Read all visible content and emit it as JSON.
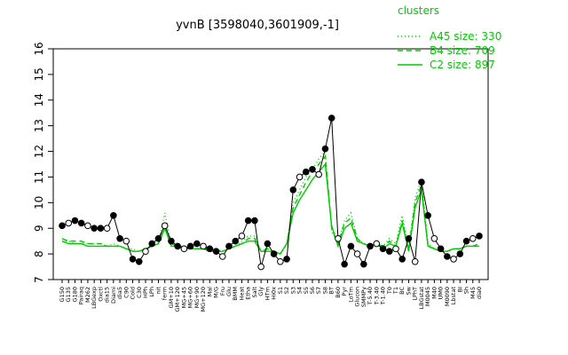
{
  "chart_data": {
    "type": "line",
    "title": "yvnB [3598040,3601909,-1]",
    "xlabel": "",
    "ylabel": "",
    "ylim": [
      7,
      16
    ],
    "yticks": [
      7,
      8,
      9,
      10,
      11,
      12,
      13,
      14,
      15,
      16
    ],
    "grid": false,
    "legend": {
      "title": "clusters",
      "placement": "top-right",
      "entries": [
        {
          "label": "A45 size: 330",
          "style": "dotted"
        },
        {
          "label": "B4 size: 709",
          "style": "dashed"
        },
        {
          "label": "C2 size: 897",
          "style": "solid"
        }
      ]
    },
    "colors": {
      "line": "#00cc00",
      "profile": "#000000",
      "points": "#000000"
    },
    "x_tick_labels": [
      "G150",
      "G135",
      "G180",
      "Pairaq",
      "M262",
      "LBGexp",
      "Oxctl",
      "dia15",
      "Diami",
      "dia5",
      "C90",
      "Cold",
      "C30",
      "HPh",
      "LPh",
      "nit",
      "ferm",
      "GM+10",
      "GM+120",
      "MG+45",
      "MG+60",
      "MG+90",
      "MG+120",
      "Mal",
      "M/G",
      "Fru",
      "Glu",
      "BMM",
      "Heat",
      "Etha",
      "Salt",
      "Gly",
      "HTm",
      "Hi0x",
      "S1",
      "S2",
      "S3",
      "S4",
      "S5",
      "S6",
      "S7",
      "S8",
      "BT",
      "B60",
      "Pyr",
      "LoTm",
      "Glucon",
      "SMMPy",
      "T-5.40",
      "T-3.40",
      "T-1.40",
      "T0",
      "T1",
      "BC",
      "Sw",
      "LPhT",
      "LBGstat",
      "M0045",
      "M40",
      "UM0",
      "M0090",
      "Lbstat",
      "BI",
      "Sh",
      "M45",
      "dia0"
    ],
    "series": [
      {
        "name": "A45 size: 330",
        "values": [
          8.5,
          8.5,
          8.4,
          8.4,
          8.4,
          8.4,
          8.4,
          8.3,
          8.4,
          8.3,
          8.2,
          8.2,
          8.1,
          8.2,
          8.3,
          8.4,
          9.6,
          8.4,
          8.3,
          8.3,
          8.2,
          8.2,
          8.2,
          8.2,
          8.2,
          8.1,
          8.2,
          8.3,
          8.5,
          8.7,
          8.7,
          8.1,
          8.2,
          8.1,
          8.0,
          8.4,
          10.0,
          10.5,
          11.0,
          11.3,
          11.7,
          12.0,
          8.9,
          8.4,
          9.3,
          9.6,
          8.6,
          8.4,
          8.3,
          8.5,
          8.3,
          8.6,
          8.4,
          9.5,
          8.2,
          10.2,
          10.9,
          8.4,
          8.2,
          8.1,
          8.1,
          8.2,
          8.2,
          8.3,
          8.3,
          8.4
        ]
      },
      {
        "name": "B4 size: 709",
        "values": [
          8.6,
          8.5,
          8.5,
          8.5,
          8.4,
          8.4,
          8.4,
          8.3,
          8.3,
          8.3,
          8.2,
          8.1,
          8.1,
          8.2,
          8.3,
          8.4,
          9.2,
          8.4,
          8.3,
          8.2,
          8.2,
          8.2,
          8.2,
          8.2,
          8.1,
          8.1,
          8.2,
          8.3,
          8.4,
          8.6,
          8.6,
          8.1,
          8.2,
          8.1,
          8.0,
          8.4,
          9.8,
          10.3,
          10.8,
          11.2,
          11.5,
          11.8,
          9.0,
          8.4,
          9.2,
          9.4,
          8.6,
          8.4,
          8.3,
          8.4,
          8.3,
          8.5,
          8.3,
          9.3,
          8.2,
          10.0,
          10.7,
          8.3,
          8.2,
          8.1,
          8.1,
          8.2,
          8.2,
          8.3,
          8.3,
          8.4
        ]
      },
      {
        "name": "C2 size: 897",
        "values": [
          8.5,
          8.4,
          8.4,
          8.4,
          8.3,
          8.3,
          8.3,
          8.3,
          8.3,
          8.3,
          8.2,
          8.1,
          8.1,
          8.2,
          8.3,
          8.4,
          9.0,
          8.3,
          8.3,
          8.2,
          8.2,
          8.2,
          8.2,
          8.1,
          8.1,
          8.1,
          8.2,
          8.3,
          8.4,
          8.5,
          8.5,
          8.1,
          8.1,
          8.1,
          8.0,
          8.4,
          9.6,
          10.1,
          10.5,
          10.9,
          11.2,
          11.5,
          9.1,
          8.3,
          9.0,
          9.2,
          8.5,
          8.4,
          8.3,
          8.4,
          8.2,
          8.4,
          8.3,
          9.2,
          8.1,
          9.8,
          10.5,
          8.3,
          8.2,
          8.1,
          8.1,
          8.2,
          8.2,
          8.3,
          8.3,
          8.3
        ]
      },
      {
        "name": "",
        "values": [
          9.1,
          9.2,
          9.3,
          9.2,
          9.1,
          9.0,
          9.0,
          9.0,
          9.5,
          8.6,
          8.5,
          7.8,
          7.7,
          8.1,
          8.4,
          8.6,
          9.1,
          8.5,
          8.3,
          8.2,
          8.3,
          8.4,
          8.3,
          8.2,
          8.1,
          7.9,
          8.3,
          8.5,
          8.7,
          9.3,
          9.3,
          7.5,
          8.4,
          8.0,
          7.7,
          7.8,
          10.5,
          11.0,
          11.2,
          11.3,
          11.1,
          12.1,
          13.3,
          8.6,
          7.6,
          8.3,
          8.0,
          7.6,
          8.3,
          8.4,
          8.2,
          8.1,
          8.2,
          7.8,
          8.6,
          7.7,
          10.8,
          9.5,
          8.6,
          8.2,
          7.9,
          7.8,
          8.0,
          8.5,
          8.6,
          8.7
        ]
      }
    ]
  }
}
